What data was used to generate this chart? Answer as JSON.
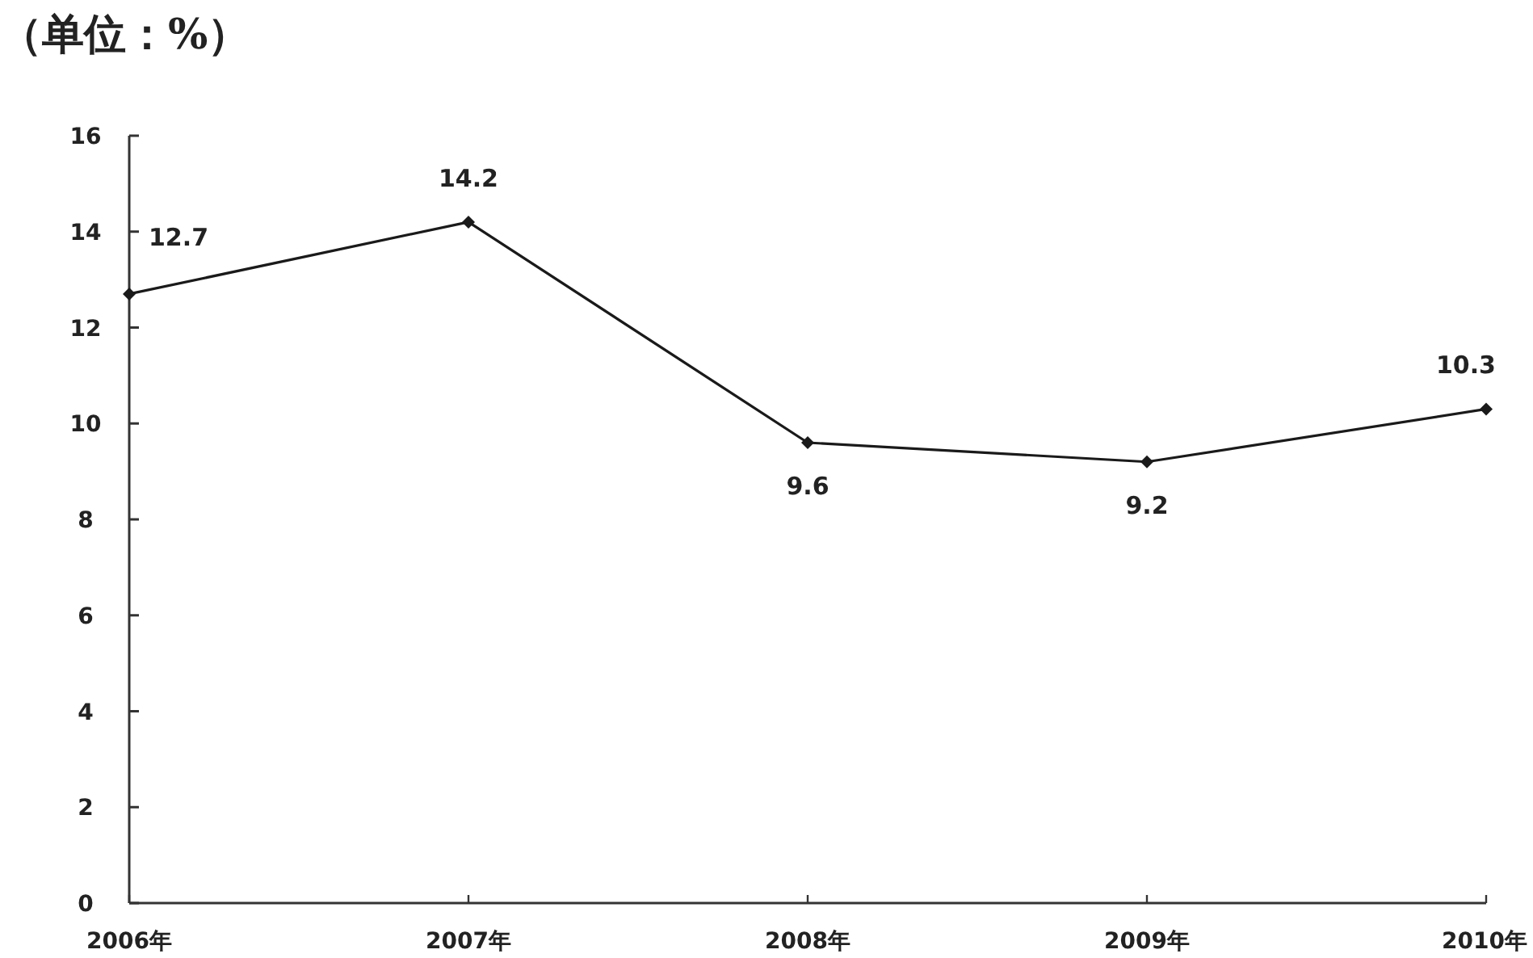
{
  "chart_data": {
    "type": "line",
    "title": "（单位：%）",
    "categories": [
      "2006年",
      "2007年",
      "2008年",
      "2009年",
      "2010年"
    ],
    "values": [
      12.7,
      14.2,
      9.6,
      9.2,
      10.3
    ],
    "color": "#1a1a1a",
    "marker": "diamond",
    "data_labels": true,
    "ylim": [
      0,
      16
    ],
    "yticks": [
      0,
      2,
      4,
      6,
      8,
      10,
      12,
      14,
      16
    ]
  }
}
